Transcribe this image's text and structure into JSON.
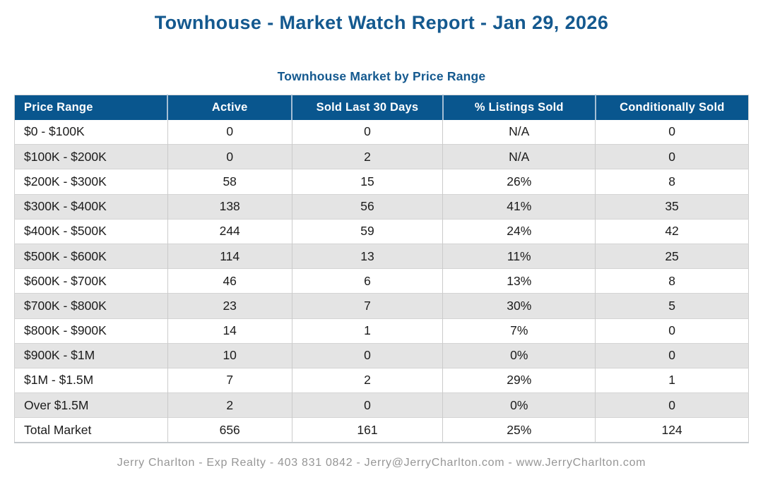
{
  "page": {
    "title": "Townhouse - Market Watch Report - Jan 29, 2026",
    "footer": "Jerry Charlton - Exp Realty - 403 831 0842 - Jerry@JerryCharlton.com - www.JerryCharlton.com"
  },
  "table": {
    "title": "Townhouse Market by Price Range",
    "columns": [
      "Price Range",
      "Active",
      "Sold Last 30 Days",
      "% Listings Sold",
      "Conditionally Sold"
    ],
    "rows": [
      [
        "$0 - $100K",
        "0",
        "0",
        "N/A",
        "0"
      ],
      [
        "$100K - $200K",
        "0",
        "2",
        "N/A",
        "0"
      ],
      [
        "$200K - $300K",
        "58",
        "15",
        "26%",
        "8"
      ],
      [
        "$300K - $400K",
        "138",
        "56",
        "41%",
        "35"
      ],
      [
        "$400K - $500K",
        "244",
        "59",
        "24%",
        "42"
      ],
      [
        "$500K - $600K",
        "114",
        "13",
        "11%",
        "25"
      ],
      [
        "$600K - $700K",
        "46",
        "6",
        "13%",
        "8"
      ],
      [
        "$700K - $800K",
        "23",
        "7",
        "30%",
        "5"
      ],
      [
        "$800K - $900K",
        "14",
        "1",
        "7%",
        "0"
      ],
      [
        "$900K - $1M",
        "10",
        "0",
        "0%",
        "0"
      ],
      [
        "$1M - $1.5M",
        "7",
        "2",
        "29%",
        "1"
      ],
      [
        "Over $1.5M",
        "2",
        "0",
        "0%",
        "0"
      ],
      [
        "Total Market",
        "656",
        "161",
        "25%",
        "124"
      ]
    ]
  },
  "colors": {
    "header_bg": "#09568E",
    "title_text": "#14598F",
    "row_alt_bg": "#E4E4E4",
    "footer_text": "#969696"
  }
}
